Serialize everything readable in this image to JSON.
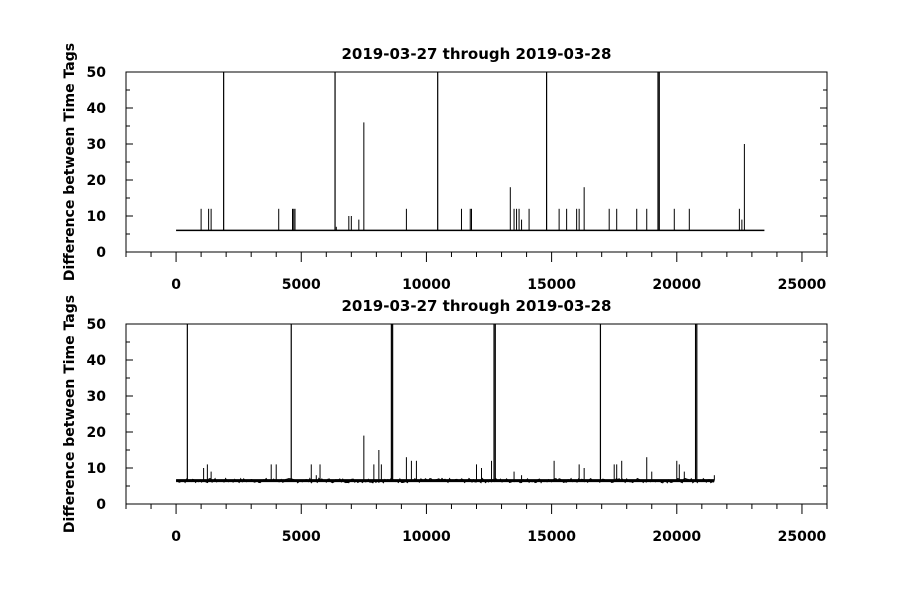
{
  "chart_data": [
    {
      "type": "line",
      "title": "2019-03-27 through 2019-03-28",
      "ylabel": "Difference between Time Tags",
      "xlim": [
        -2000,
        26000
      ],
      "ylim": [
        0,
        50
      ],
      "xticks": [
        0,
        5000,
        10000,
        15000,
        20000,
        25000
      ],
      "yticks": [
        0,
        10,
        20,
        30,
        40,
        50
      ],
      "baseline": 6,
      "x_end": 23500,
      "spikes": [
        {
          "x": 1000,
          "y": 12
        },
        {
          "x": 1300,
          "y": 12
        },
        {
          "x": 1400,
          "y": 12
        },
        {
          "x": 1900,
          "y": 50
        },
        {
          "x": 4100,
          "y": 12
        },
        {
          "x": 4650,
          "y": 12
        },
        {
          "x": 4700,
          "y": 12
        },
        {
          "x": 4750,
          "y": 12
        },
        {
          "x": 6350,
          "y": 50
        },
        {
          "x": 6400,
          "y": 7
        },
        {
          "x": 6900,
          "y": 10
        },
        {
          "x": 7000,
          "y": 10
        },
        {
          "x": 7300,
          "y": 9
        },
        {
          "x": 7500,
          "y": 36
        },
        {
          "x": 9200,
          "y": 12
        },
        {
          "x": 10450,
          "y": 50
        },
        {
          "x": 11400,
          "y": 12
        },
        {
          "x": 11750,
          "y": 12
        },
        {
          "x": 11800,
          "y": 12
        },
        {
          "x": 13350,
          "y": 18
        },
        {
          "x": 13500,
          "y": 12
        },
        {
          "x": 13600,
          "y": 12
        },
        {
          "x": 13700,
          "y": 12
        },
        {
          "x": 13800,
          "y": 9
        },
        {
          "x": 14100,
          "y": 12
        },
        {
          "x": 14800,
          "y": 50
        },
        {
          "x": 15300,
          "y": 12
        },
        {
          "x": 15600,
          "y": 12
        },
        {
          "x": 16000,
          "y": 12
        },
        {
          "x": 16100,
          "y": 12
        },
        {
          "x": 16300,
          "y": 18
        },
        {
          "x": 17300,
          "y": 12
        },
        {
          "x": 17600,
          "y": 12
        },
        {
          "x": 18400,
          "y": 12
        },
        {
          "x": 18800,
          "y": 12
        },
        {
          "x": 19250,
          "y": 50
        },
        {
          "x": 19300,
          "y": 50
        },
        {
          "x": 19900,
          "y": 12
        },
        {
          "x": 20500,
          "y": 12
        },
        {
          "x": 22500,
          "y": 12
        },
        {
          "x": 22600,
          "y": 9
        },
        {
          "x": 22700,
          "y": 30
        }
      ]
    },
    {
      "type": "line",
      "title": "2019-03-27 through 2019-03-28",
      "ylabel": "Difference between Time Tags",
      "xlim": [
        -2000,
        26000
      ],
      "ylim": [
        0,
        50
      ],
      "xticks": [
        0,
        5000,
        10000,
        15000,
        20000,
        25000
      ],
      "yticks": [
        0,
        10,
        20,
        30,
        40,
        50
      ],
      "baseline": 6.5,
      "x_end": 21500,
      "spikes": [
        {
          "x": 450,
          "y": 50
        },
        {
          "x": 1100,
          "y": 10
        },
        {
          "x": 1250,
          "y": 11
        },
        {
          "x": 1400,
          "y": 9
        },
        {
          "x": 3800,
          "y": 11
        },
        {
          "x": 4000,
          "y": 11
        },
        {
          "x": 4600,
          "y": 50
        },
        {
          "x": 5400,
          "y": 11
        },
        {
          "x": 5600,
          "y": 8
        },
        {
          "x": 5750,
          "y": 11
        },
        {
          "x": 7500,
          "y": 19
        },
        {
          "x": 7900,
          "y": 11
        },
        {
          "x": 8100,
          "y": 15
        },
        {
          "x": 8200,
          "y": 11
        },
        {
          "x": 8600,
          "y": 50
        },
        {
          "x": 8650,
          "y": 50
        },
        {
          "x": 9200,
          "y": 13
        },
        {
          "x": 9400,
          "y": 12
        },
        {
          "x": 9600,
          "y": 12
        },
        {
          "x": 12000,
          "y": 11
        },
        {
          "x": 12200,
          "y": 10
        },
        {
          "x": 12600,
          "y": 12
        },
        {
          "x": 12700,
          "y": 50
        },
        {
          "x": 12750,
          "y": 50
        },
        {
          "x": 13500,
          "y": 9
        },
        {
          "x": 13800,
          "y": 8
        },
        {
          "x": 15100,
          "y": 12
        },
        {
          "x": 16100,
          "y": 11
        },
        {
          "x": 16300,
          "y": 10
        },
        {
          "x": 16950,
          "y": 50
        },
        {
          "x": 17500,
          "y": 11
        },
        {
          "x": 17600,
          "y": 11
        },
        {
          "x": 17800,
          "y": 12
        },
        {
          "x": 18800,
          "y": 13
        },
        {
          "x": 19000,
          "y": 9
        },
        {
          "x": 20000,
          "y": 12
        },
        {
          "x": 20100,
          "y": 11
        },
        {
          "x": 20300,
          "y": 9
        },
        {
          "x": 20750,
          "y": 50
        },
        {
          "x": 20800,
          "y": 50
        },
        {
          "x": 21500,
          "y": 8
        }
      ]
    }
  ]
}
